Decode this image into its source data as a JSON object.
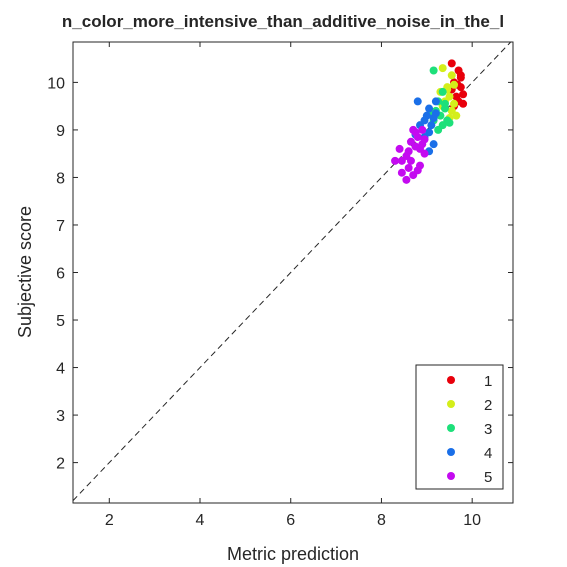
{
  "chart_data": {
    "type": "scatter",
    "title": "n_color_more_intensive_than_additive_noise_in_the_l",
    "xlabel": "Metric prediction",
    "ylabel": "Subjective score",
    "xlim": [
      1.2,
      10.9
    ],
    "ylim": [
      1.15,
      10.85
    ],
    "xticks": [
      2,
      4,
      6,
      8,
      10
    ],
    "yticks": [
      2,
      3,
      4,
      5,
      6,
      7,
      8,
      9,
      10
    ],
    "grid": false,
    "legend_position": "bottom-right",
    "reference_line": "dashed diagonal y = x",
    "series": [
      {
        "name": "1",
        "color": "#e8000b",
        "points": [
          [
            9.55,
            10.4
          ],
          [
            9.7,
            10.25
          ],
          [
            9.75,
            10.1
          ],
          [
            9.6,
            10.0
          ],
          [
            9.75,
            9.9
          ],
          [
            9.8,
            9.75
          ],
          [
            9.65,
            9.7
          ],
          [
            9.55,
            9.85
          ],
          [
            9.7,
            9.6
          ],
          [
            9.8,
            9.55
          ],
          [
            9.6,
            9.5
          ],
          [
            9.75,
            10.15
          ],
          [
            9.68,
            9.95
          ]
        ]
      },
      {
        "name": "2",
        "color": "#d4ee1a",
        "points": [
          [
            9.35,
            10.3
          ],
          [
            9.55,
            10.15
          ],
          [
            9.6,
            9.95
          ],
          [
            9.45,
            9.85
          ],
          [
            9.3,
            9.8
          ],
          [
            9.5,
            9.7
          ],
          [
            9.6,
            9.55
          ],
          [
            9.4,
            9.6
          ],
          [
            9.55,
            9.4
          ],
          [
            9.65,
            9.3
          ],
          [
            9.35,
            9.5
          ],
          [
            9.5,
            9.25
          ],
          [
            9.45,
            9.9
          ]
        ]
      },
      {
        "name": "3",
        "color": "#1de07a",
        "points": [
          [
            9.15,
            10.25
          ],
          [
            9.35,
            9.8
          ],
          [
            9.25,
            9.6
          ],
          [
            9.4,
            9.45
          ],
          [
            9.2,
            9.4
          ],
          [
            9.3,
            9.3
          ],
          [
            9.45,
            9.2
          ],
          [
            9.15,
            9.2
          ],
          [
            9.35,
            9.1
          ],
          [
            9.5,
            9.15
          ],
          [
            9.25,
            9.0
          ],
          [
            9.1,
            9.35
          ],
          [
            9.4,
            9.55
          ]
        ]
      },
      {
        "name": "4",
        "color": "#1a6fe8",
        "points": [
          [
            8.8,
            9.6
          ],
          [
            9.2,
            9.6
          ],
          [
            9.05,
            9.45
          ],
          [
            9.0,
            9.3
          ],
          [
            9.15,
            9.25
          ],
          [
            8.95,
            9.2
          ],
          [
            9.1,
            9.1
          ],
          [
            8.85,
            9.1
          ],
          [
            9.05,
            8.95
          ],
          [
            8.95,
            8.85
          ],
          [
            9.15,
            8.7
          ],
          [
            9.05,
            8.55
          ],
          [
            8.75,
            8.9
          ],
          [
            9.2,
            9.35
          ]
        ]
      },
      {
        "name": "5",
        "color": "#c40af0",
        "points": [
          [
            8.7,
            9.0
          ],
          [
            8.9,
            9.0
          ],
          [
            8.8,
            8.85
          ],
          [
            8.95,
            8.8
          ],
          [
            8.65,
            8.75
          ],
          [
            8.75,
            8.65
          ],
          [
            8.85,
            8.6
          ],
          [
            8.6,
            8.55
          ],
          [
            8.95,
            8.5
          ],
          [
            8.4,
            8.6
          ],
          [
            8.55,
            8.45
          ],
          [
            8.3,
            8.35
          ],
          [
            8.45,
            8.35
          ],
          [
            8.65,
            8.35
          ],
          [
            8.6,
            8.2
          ],
          [
            8.85,
            8.25
          ],
          [
            8.45,
            8.1
          ],
          [
            8.7,
            8.05
          ],
          [
            8.55,
            7.95
          ],
          [
            8.8,
            8.15
          ],
          [
            8.9,
            8.7
          ],
          [
            8.75,
            8.95
          ]
        ]
      }
    ]
  }
}
